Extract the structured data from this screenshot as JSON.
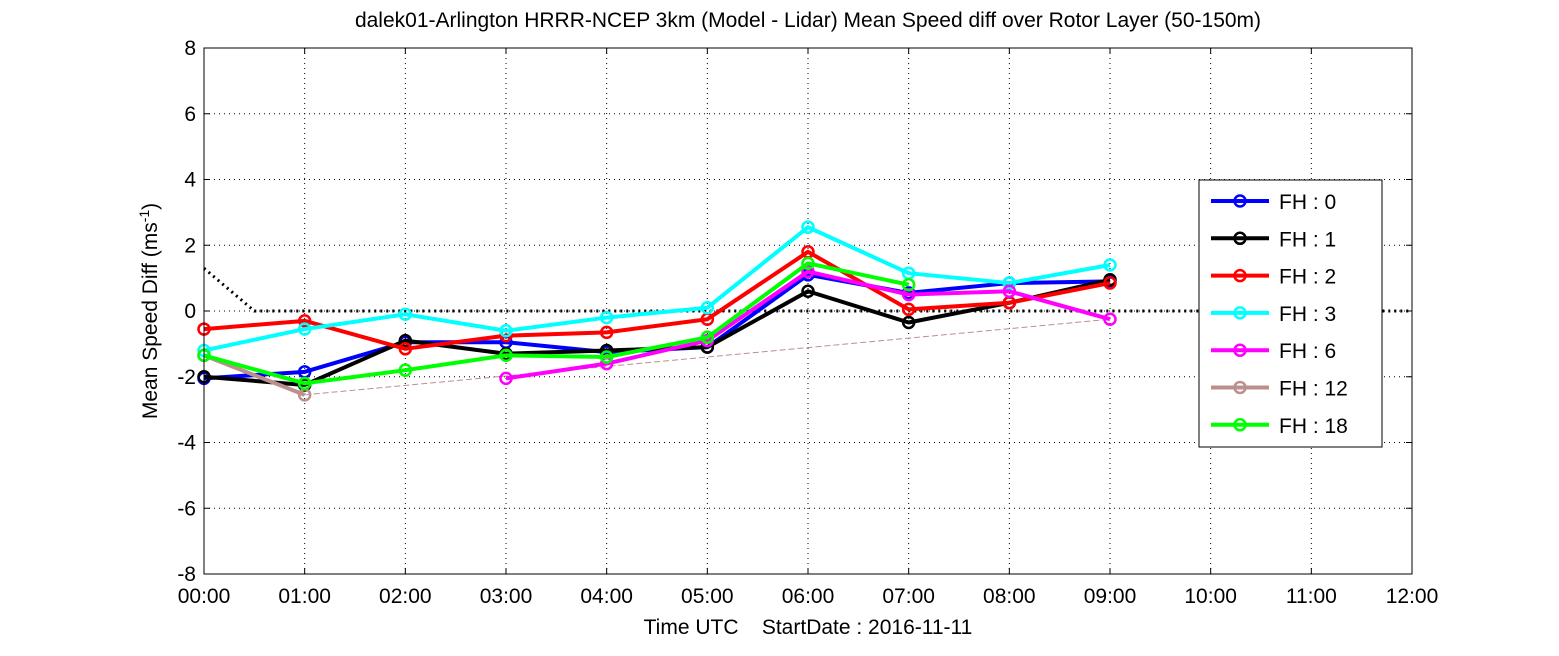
{
  "chart_data": {
    "type": "line",
    "title": "dalek01-Arlington HRRR-NCEP 3km (Model - Lidar) Mean Speed diff over Rotor Layer (50-150m)",
    "xlabel": "Time UTC    StartDate : 2016-11-11",
    "ylabel": {
      "main": "Mean Speed Diff (ms",
      "sup": "-1",
      "close": ")"
    },
    "x_ticks": [
      "00:00",
      "01:00",
      "02:00",
      "03:00",
      "04:00",
      "05:00",
      "06:00",
      "07:00",
      "08:00",
      "09:00",
      "10:00",
      "11:00",
      "12:00"
    ],
    "y_ticks": [
      "-8",
      "-6",
      "-4",
      "-2",
      "0",
      "2",
      "4",
      "6",
      "8"
    ],
    "xlim": [
      0,
      12
    ],
    "ylim": [
      -8,
      8
    ],
    "grid": true,
    "legend_position": "right",
    "series": [
      {
        "name": "FH : 0",
        "color": "#0000ff",
        "x": [
          0,
          1,
          2,
          3,
          4,
          5,
          6,
          7,
          8,
          9
        ],
        "y": [
          -2.05,
          -1.85,
          -0.95,
          -0.95,
          -1.25,
          -1.1,
          1.1,
          0.55,
          0.85,
          0.9
        ]
      },
      {
        "name": "FH : 1",
        "color": "#000000",
        "x": [
          0,
          1,
          2,
          3,
          4,
          5,
          6,
          7,
          8,
          9
        ],
        "y": [
          -2.0,
          -2.25,
          -0.9,
          -1.3,
          -1.2,
          -1.1,
          0.6,
          -0.35,
          0.25,
          0.95
        ]
      },
      {
        "name": "FH : 2",
        "color": "#ff0000",
        "x": [
          0,
          1,
          2,
          3,
          4,
          5,
          6,
          7,
          8,
          9
        ],
        "y": [
          -0.55,
          -0.3,
          -1.15,
          -0.75,
          -0.65,
          -0.25,
          1.8,
          0.05,
          0.25,
          0.85
        ]
      },
      {
        "name": "FH : 3",
        "color": "#00ffff",
        "x": [
          0,
          1,
          2,
          3,
          4,
          5,
          6,
          7,
          8,
          9
        ],
        "y": [
          -1.2,
          -0.55,
          -0.1,
          -0.6,
          -0.2,
          0.1,
          2.55,
          1.15,
          0.85,
          1.4
        ]
      },
      {
        "name": "FH : 6",
        "color": "#ff00ff",
        "x": [
          3,
          4,
          5,
          6,
          7,
          8,
          9
        ],
        "y": [
          -2.05,
          -1.6,
          -0.9,
          1.2,
          0.5,
          0.6,
          -0.25
        ]
      },
      {
        "name": "FH : 12",
        "color": "#bc8f8f",
        "x": [
          0,
          1
        ],
        "y": [
          -1.35,
          -2.55
        ]
      },
      {
        "name": "FH : 18",
        "color": "#00ff00",
        "x": [
          0,
          1,
          2,
          3,
          4,
          5,
          6,
          7
        ],
        "y": [
          -1.35,
          -2.2,
          -1.8,
          -1.35,
          -1.4,
          -0.8,
          1.45,
          0.8
        ]
      }
    ],
    "reference_lines": [
      {
        "style": "dotted",
        "color": "#000000",
        "x": [
          0,
          0.5,
          12
        ],
        "y": [
          1.3,
          0,
          0
        ]
      },
      {
        "style": "dashed",
        "color": "#bc8f8f",
        "x": [
          1,
          9
        ],
        "y": [
          -2.55,
          -0.25
        ]
      }
    ]
  }
}
